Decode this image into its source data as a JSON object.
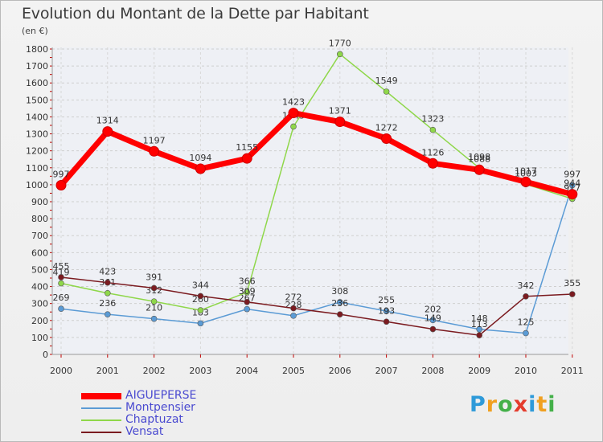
{
  "title": "Evolution du Montant de la Dette par Habitant",
  "subtitle": "(en €)",
  "logo": [
    "P",
    "r",
    "o",
    "x",
    "i",
    "t",
    "i"
  ],
  "chart_data": {
    "type": "line",
    "x": [
      "2000",
      "2001",
      "2002",
      "2003",
      "2004",
      "2005",
      "2006",
      "2007",
      "2008",
      "2009",
      "2010",
      "2011"
    ],
    "ylim": [
      0,
      1800
    ],
    "yticks": [
      0,
      100,
      200,
      300,
      400,
      500,
      600,
      700,
      800,
      900,
      1000,
      1100,
      1200,
      1300,
      1400,
      1500,
      1600,
      1700,
      1800
    ],
    "grid": true,
    "legend_position": "bottom-left",
    "series": [
      {
        "name": "AIGUEPERSE",
        "color": "#ff0000",
        "values": [
          997,
          1314,
          1197,
          1094,
          1155,
          1423,
          1371,
          1272,
          1126,
          1088,
          1017,
          944
        ]
      },
      {
        "name": "Montpensier",
        "color": "#5b9bd5",
        "values": [
          269,
          236,
          210,
          183,
          267,
          228,
          308,
          255,
          202,
          148,
          125,
          997
        ]
      },
      {
        "name": "Chaptuzat",
        "color": "#8fd74a",
        "values": [
          419,
          361,
          312,
          260,
          366,
          1343,
          1770,
          1549,
          1323,
          1098,
          1003,
          917
        ]
      },
      {
        "name": "Vensat",
        "color": "#7b1b20",
        "values": [
          455,
          423,
          391,
          344,
          309,
          272,
          236,
          193,
          149,
          113,
          342,
          355
        ]
      }
    ]
  }
}
